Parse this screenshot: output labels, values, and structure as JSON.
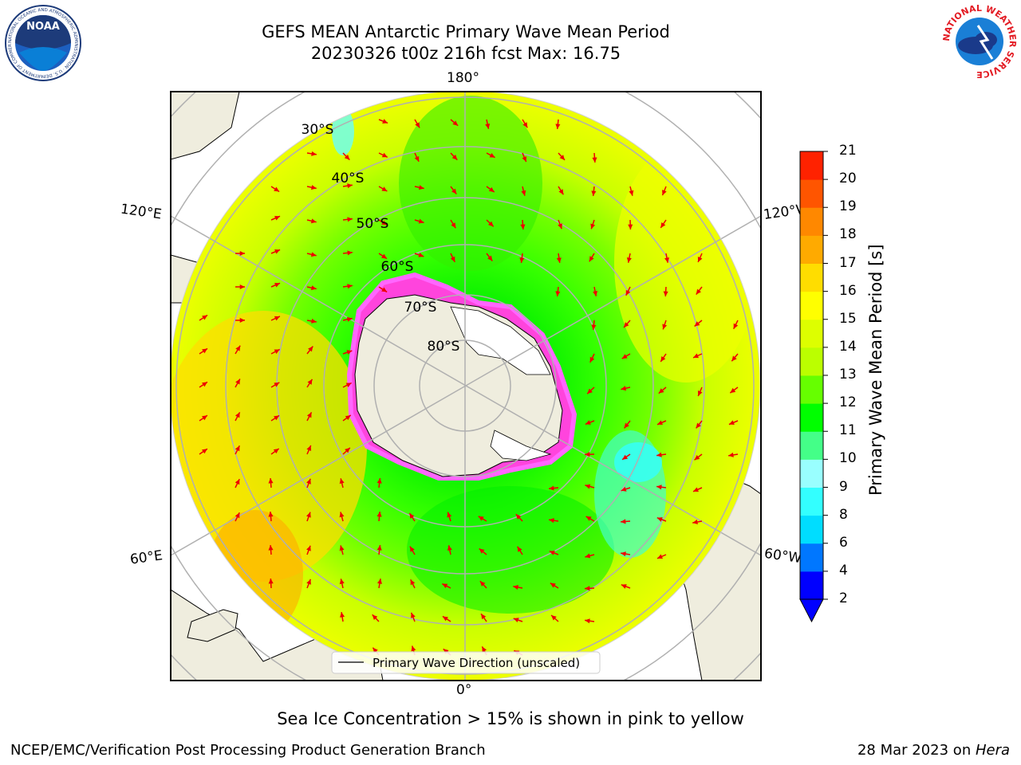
{
  "title": {
    "line1": "GEFS MEAN Antarctic Primary Wave Mean Period",
    "line2": "20230326 t00z 216h fcst   Max: 16.75"
  },
  "map": {
    "lon_labels": {
      "top": "180°",
      "bottom": "0°",
      "left_upper": "120°E",
      "left_lower": "60°E",
      "right_upper": "120°W",
      "right_lower": "60°W"
    },
    "lat_labels": [
      "30°S",
      "40°S",
      "50°S",
      "60°S",
      "70°S",
      "80°S"
    ],
    "legend": "Primary Wave Direction (unscaled)"
  },
  "colorbar": {
    "title": "Primary Wave Mean Period [s]",
    "ticks": [
      "2",
      "4",
      "6",
      "8",
      "9",
      "10",
      "11",
      "12",
      "13",
      "14",
      "15",
      "16",
      "17",
      "18",
      "19",
      "20",
      "21"
    ],
    "colors": [
      "#0000ff",
      "#0077ff",
      "#00ddff",
      "#33ffff",
      "#99ffff",
      "#44ff88",
      "#00ff00",
      "#66ff00",
      "#bbff00",
      "#ddff00",
      "#ffff00",
      "#ffdd00",
      "#ffaa00",
      "#ff8800",
      "#ff5500",
      "#ff2200",
      "#ff0000"
    ]
  },
  "note": "Sea Ice Concentration > 15% is shown in pink to yellow",
  "footer": {
    "left": "NCEP/EMC/Verification Post Processing Product Generation Branch",
    "right_date": "28 Mar 2023 on ",
    "right_host": "Hera"
  },
  "logos": {
    "left_text": "NOAA",
    "left_ring_text": "NATIONAL OCEANIC AND ATMOSPHERIC ADMINISTRATION · U.S. DEPARTMENT OF COMMERCE",
    "right_ring_text": "NATIONAL WEATHER SERVICE"
  }
}
